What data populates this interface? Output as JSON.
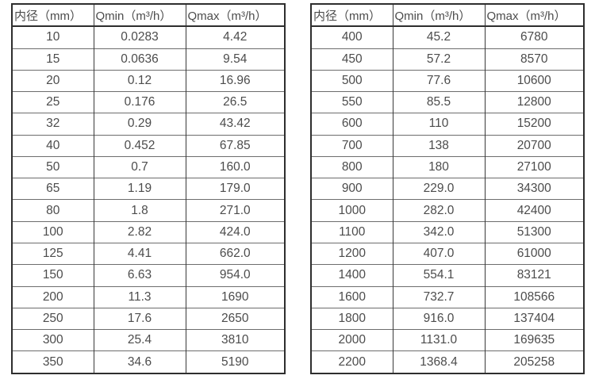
{
  "colors": {
    "outer_border": "#2e2e2e",
    "vertical_line": "#3a3a3a",
    "row_line": "#6d6d6d",
    "text": "#4c4c4c",
    "background": "#ffffff"
  },
  "left_table": {
    "headers": [
      "内径（mm）",
      "Qmin（m³/h）",
      "Qmax（m³/h）"
    ],
    "rows": [
      [
        "10",
        "0.0283",
        "4.42"
      ],
      [
        "15",
        "0.0636",
        "9.54"
      ],
      [
        "20",
        "0.12",
        "16.96"
      ],
      [
        "25",
        "0.176",
        "26.5"
      ],
      [
        "32",
        "0.29",
        "43.42"
      ],
      [
        "40",
        "0.452",
        "67.85"
      ],
      [
        "50",
        "0.7",
        "160.0"
      ],
      [
        "65",
        "1.19",
        "179.0"
      ],
      [
        "80",
        "1.8",
        "271.0"
      ],
      [
        "100",
        "2.82",
        "424.0"
      ],
      [
        "125",
        "4.41",
        "662.0"
      ],
      [
        "150",
        "6.63",
        "954.0"
      ],
      [
        "200",
        "11.3",
        "1690"
      ],
      [
        "250",
        "17.6",
        "2650"
      ],
      [
        "300",
        "25.4",
        "3810"
      ],
      [
        "350",
        "34.6",
        "5190"
      ]
    ]
  },
  "right_table": {
    "headers": [
      "内径（mm）",
      "Qmin（m³/h）",
      "Qmax（m³/h）"
    ],
    "rows": [
      [
        "400",
        "45.2",
        "6780"
      ],
      [
        "450",
        "57.2",
        "8570"
      ],
      [
        "500",
        "77.6",
        "10600"
      ],
      [
        "550",
        "85.5",
        "12800"
      ],
      [
        "600",
        "110",
        "15200"
      ],
      [
        "700",
        "138",
        "20700"
      ],
      [
        "800",
        "180",
        "27100"
      ],
      [
        "900",
        "229.0",
        "34300"
      ],
      [
        "1000",
        "282.0",
        "42400"
      ],
      [
        "1100",
        "342.0",
        "51300"
      ],
      [
        "1200",
        "407.0",
        "61000"
      ],
      [
        "1400",
        "554.1",
        "83121"
      ],
      [
        "1600",
        "732.7",
        "108566"
      ],
      [
        "1800",
        "916.0",
        "137404"
      ],
      [
        "2000",
        "1131.0",
        "169635"
      ],
      [
        "2200",
        "1368.4",
        "205258"
      ]
    ]
  }
}
